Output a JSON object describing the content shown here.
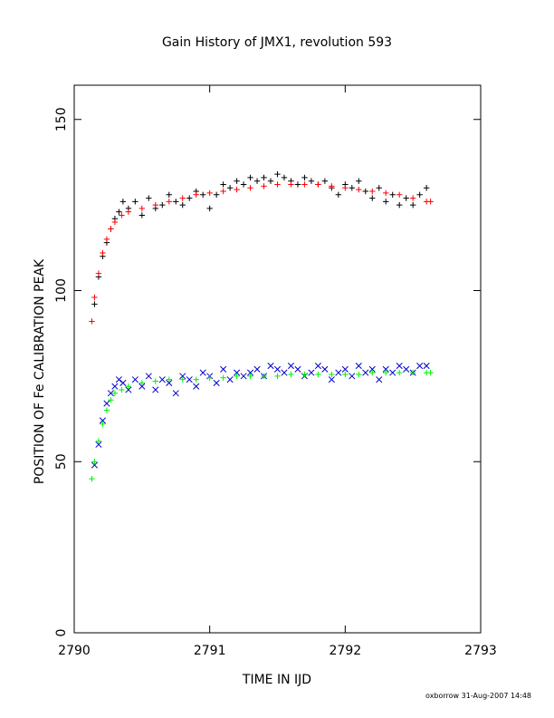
{
  "chart_data": {
    "type": "scatter",
    "title": "Gain History of JMX1, revolution 593",
    "xlabel": "TIME IN IJD",
    "ylabel": "POSITION OF Fe CALIBRATION PEAK",
    "xlim": [
      2790,
      2793
    ],
    "ylim": [
      0,
      160
    ],
    "xticks": [
      2790,
      2791,
      2792,
      2793
    ],
    "yticks": [
      0,
      50,
      100,
      150
    ],
    "grid": false,
    "series": [
      {
        "marker": "+",
        "color": "#000000",
        "x": [
          2790.15,
          2790.18,
          2790.21,
          2790.24,
          2790.27,
          2790.3,
          2790.33,
          2790.36,
          2790.4,
          2790.45,
          2790.5,
          2790.55,
          2790.6,
          2790.65,
          2790.7,
          2790.75,
          2790.8,
          2790.85,
          2790.9,
          2790.95,
          2791.0,
          2791.05,
          2791.1,
          2791.15,
          2791.2,
          2791.25,
          2791.3,
          2791.35,
          2791.4,
          2791.45,
          2791.5,
          2791.55,
          2791.6,
          2791.65,
          2791.7,
          2791.75,
          2791.8,
          2791.85,
          2791.9,
          2791.95,
          2792.0,
          2792.05,
          2792.1,
          2792.15,
          2792.2,
          2792.25,
          2792.3,
          2792.35,
          2792.4,
          2792.45,
          2792.5,
          2792.55,
          2792.6
        ],
        "y": [
          96,
          104,
          110,
          114,
          118,
          121,
          123,
          126,
          124,
          126,
          122,
          127,
          124,
          125,
          128,
          126,
          125,
          127,
          129,
          128,
          124,
          128,
          131,
          130,
          132,
          131,
          133,
          132,
          133,
          132,
          134,
          133,
          132,
          131,
          133,
          132,
          131,
          132,
          130,
          128,
          131,
          130,
          132,
          129,
          127,
          130,
          126,
          128,
          125,
          127,
          125,
          128,
          130
        ]
      },
      {
        "marker": "x",
        "color": "#0000cc",
        "x": [
          2790.15,
          2790.18,
          2790.21,
          2790.24,
          2790.27,
          2790.3,
          2790.33,
          2790.36,
          2790.4,
          2790.45,
          2790.5,
          2790.55,
          2790.6,
          2790.65,
          2790.7,
          2790.75,
          2790.8,
          2790.85,
          2790.9,
          2790.95,
          2791.0,
          2791.05,
          2791.1,
          2791.15,
          2791.2,
          2791.25,
          2791.3,
          2791.35,
          2791.4,
          2791.45,
          2791.5,
          2791.55,
          2791.6,
          2791.65,
          2791.7,
          2791.75,
          2791.8,
          2791.85,
          2791.9,
          2791.95,
          2792.0,
          2792.05,
          2792.1,
          2792.15,
          2792.2,
          2792.25,
          2792.3,
          2792.35,
          2792.4,
          2792.45,
          2792.5,
          2792.55,
          2792.6
        ],
        "y": [
          49,
          55,
          62,
          67,
          70,
          72,
          74,
          73,
          71,
          74,
          72,
          75,
          71,
          74,
          73,
          70,
          75,
          74,
          72,
          76,
          75,
          73,
          77,
          74,
          76,
          75,
          76,
          77,
          75,
          78,
          77,
          76,
          78,
          77,
          75,
          76,
          78,
          77,
          74,
          76,
          77,
          75,
          78,
          76,
          77,
          74,
          77,
          76,
          78,
          77,
          76,
          78,
          78
        ]
      },
      {
        "marker": "+",
        "color": "#ff0000",
        "x": [
          2790.13,
          2790.15,
          2790.18,
          2790.21,
          2790.24,
          2790.27,
          2790.3,
          2790.35,
          2790.4,
          2790.5,
          2790.6,
          2790.7,
          2790.8,
          2790.9,
          2791.0,
          2791.1,
          2791.2,
          2791.3,
          2791.4,
          2791.5,
          2791.6,
          2791.7,
          2791.8,
          2791.9,
          2792.0,
          2792.1,
          2792.2,
          2792.3,
          2792.4,
          2792.5,
          2792.6,
          2792.63
        ],
        "y": [
          91,
          98,
          105,
          111,
          115,
          118,
          120,
          122,
          123,
          124,
          125,
          126,
          127,
          128,
          128.5,
          129,
          129.5,
          130,
          130.5,
          131,
          131,
          131,
          131,
          130.5,
          130,
          129.5,
          129,
          128.5,
          128,
          127,
          126,
          126
        ]
      },
      {
        "marker": "+",
        "color": "#00ee00",
        "x": [
          2790.13,
          2790.15,
          2790.18,
          2790.21,
          2790.24,
          2790.27,
          2790.3,
          2790.35,
          2790.4,
          2790.5,
          2790.6,
          2790.7,
          2790.8,
          2790.9,
          2791.0,
          2791.1,
          2791.2,
          2791.3,
          2791.4,
          2791.5,
          2791.6,
          2791.7,
          2791.8,
          2791.9,
          2792.0,
          2792.1,
          2792.2,
          2792.3,
          2792.4,
          2792.5,
          2792.6,
          2792.63
        ],
        "y": [
          45,
          50,
          56,
          61,
          65,
          68,
          70,
          71,
          72,
          73,
          73.5,
          74,
          74,
          74,
          74.5,
          74.5,
          75,
          75,
          75,
          75,
          75.5,
          75.5,
          75.5,
          75.5,
          75.5,
          75.5,
          76,
          76,
          76,
          76,
          76,
          76
        ]
      }
    ]
  },
  "footer": "oxborrow 31-Aug-2007 14:48"
}
